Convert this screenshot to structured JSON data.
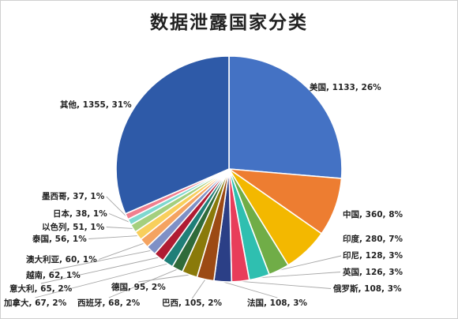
{
  "chart_data": {
    "type": "pie",
    "title": "数据泄露国家分类",
    "slices": [
      {
        "name": "美国",
        "value": 1133,
        "percent": "26%",
        "color": "#4472c4"
      },
      {
        "name": "中国",
        "value": 360,
        "percent": "8%",
        "color": "#ed7d31"
      },
      {
        "name": "印度",
        "value": 280,
        "percent": "7%",
        "color": "#f3b800"
      },
      {
        "name": "印尼",
        "value": 128,
        "percent": "3%",
        "color": "#70ad47"
      },
      {
        "name": "英国",
        "value": 126,
        "percent": "3%",
        "color": "#2fbfb0"
      },
      {
        "name": "俄罗斯",
        "value": 108,
        "percent": "3%",
        "color": "#e83d5a"
      },
      {
        "name": "法国",
        "value": 108,
        "percent": "3%",
        "color": "#2b3f86"
      },
      {
        "name": "巴西",
        "value": 105,
        "percent": "2%",
        "color": "#9c4a14"
      },
      {
        "name": "德国",
        "value": 95,
        "percent": "2%",
        "color": "#8a7a0a"
      },
      {
        "name": "西班牙",
        "value": 68,
        "percent": "2%",
        "color": "#2f6b3a"
      },
      {
        "name": "加拿大",
        "value": 67,
        "percent": "2%",
        "color": "#1f7f78"
      },
      {
        "name": "意大利",
        "value": 65,
        "percent": "2%",
        "color": "#b01c33"
      },
      {
        "name": "越南",
        "value": 62,
        "percent": "1%",
        "color": "#7f90c6"
      },
      {
        "name": "澳大利亚",
        "value": 60,
        "percent": "1%",
        "color": "#f4a361"
      },
      {
        "name": "泰国",
        "value": 56,
        "percent": "1%",
        "color": "#f8cf5c"
      },
      {
        "name": "以色列",
        "value": 51,
        "percent": "1%",
        "color": "#a4cf7e"
      },
      {
        "name": "日本",
        "value": 38,
        "percent": "1%",
        "color": "#7fd8cf"
      },
      {
        "name": "墨西哥",
        "value": 37,
        "percent": "1%",
        "color": "#f07f8f"
      },
      {
        "name": "其他",
        "value": 1355,
        "percent": "31%",
        "color": "#2e5aa8"
      }
    ]
  }
}
